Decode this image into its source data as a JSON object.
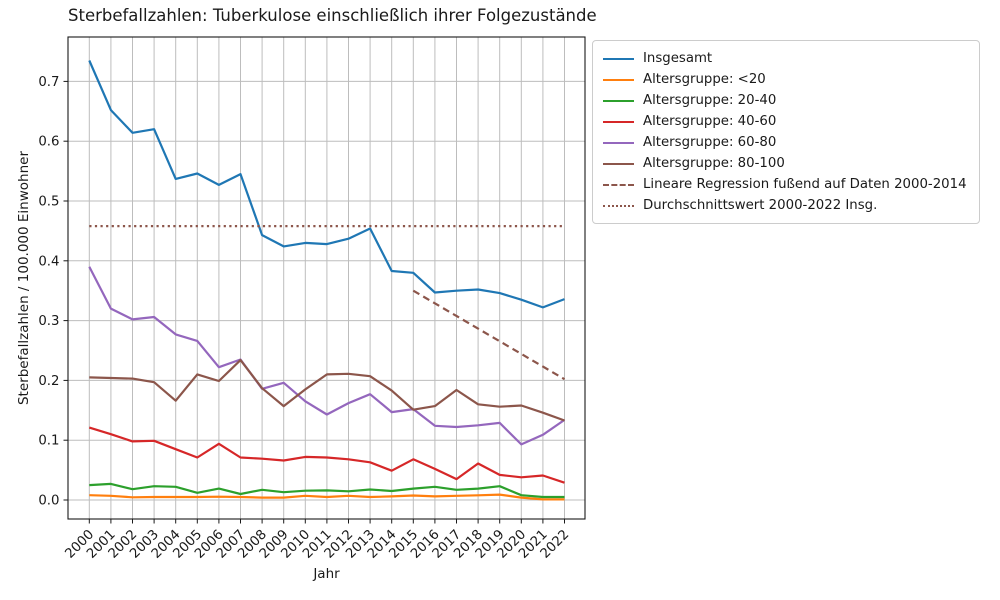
{
  "chart_data": {
    "type": "line",
    "title": "Sterbefallzahlen: Tuberkulose einschließlich ihrer Folgezustände",
    "xlabel": "Jahr",
    "ylabel": "Sterbefallzahlen / 100.000 Einwohner",
    "x": [
      2000,
      2001,
      2002,
      2003,
      2004,
      2005,
      2006,
      2007,
      2008,
      2009,
      2010,
      2011,
      2012,
      2013,
      2014,
      2015,
      2016,
      2017,
      2018,
      2019,
      2020,
      2021,
      2022
    ],
    "yticks": [
      0.0,
      0.1,
      0.2,
      0.3,
      0.4,
      0.5,
      0.6,
      0.7
    ],
    "ylim": [
      -0.033,
      0.775
    ],
    "grid": true,
    "legend_position": "outside-top-right",
    "series": [
      {
        "name": "Insgesamt",
        "color": "#1f77b4",
        "style": "solid",
        "values": [
          0.735,
          0.652,
          0.614,
          0.62,
          0.537,
          0.546,
          0.527,
          0.545,
          0.443,
          0.424,
          0.43,
          0.428,
          0.437,
          0.454,
          0.383,
          0.38,
          0.347,
          0.35,
          0.352,
          0.346,
          0.335,
          0.322,
          0.336
        ]
      },
      {
        "name": "Altersgruppe: <20",
        "color": "#ff7f0e",
        "style": "solid",
        "values": [
          0.008,
          0.007,
          0.0045,
          0.005,
          0.005,
          0.005,
          0.0055,
          0.005,
          0.004,
          0.004,
          0.007,
          0.005,
          0.007,
          0.005,
          0.006,
          0.0075,
          0.006,
          0.007,
          0.0078,
          0.009,
          0.004,
          0.001,
          0.001
        ]
      },
      {
        "name": "Altersgruppe: 20-40",
        "color": "#2ca02c",
        "style": "solid",
        "values": [
          0.025,
          0.027,
          0.018,
          0.023,
          0.022,
          0.012,
          0.019,
          0.01,
          0.017,
          0.013,
          0.0155,
          0.016,
          0.0145,
          0.0175,
          0.015,
          0.019,
          0.022,
          0.017,
          0.019,
          0.023,
          0.008,
          0.005,
          0.005
        ]
      },
      {
        "name": "Altersgruppe: 40-60",
        "color": "#d62728",
        "style": "solid",
        "values": [
          0.121,
          0.11,
          0.098,
          0.099,
          0.085,
          0.071,
          0.094,
          0.071,
          0.069,
          0.066,
          0.072,
          0.071,
          0.068,
          0.063,
          0.049,
          0.068,
          0.052,
          0.035,
          0.061,
          0.042,
          0.038,
          0.041,
          0.029
        ]
      },
      {
        "name": "Altersgruppe: 60-80",
        "color": "#9467bd",
        "style": "solid",
        "values": [
          0.39,
          0.32,
          0.302,
          0.306,
          0.277,
          0.266,
          0.222,
          0.235,
          0.186,
          0.196,
          0.165,
          0.143,
          0.162,
          0.177,
          0.147,
          0.152,
          0.124,
          0.122,
          0.125,
          0.129,
          0.093,
          0.109,
          0.134
        ]
      },
      {
        "name": "Altersgruppe: 80-100",
        "color": "#8c564b",
        "style": "solid",
        "values": [
          0.205,
          0.204,
          0.203,
          0.197,
          0.166,
          0.21,
          0.199,
          0.234,
          0.187,
          0.157,
          0.185,
          0.21,
          0.211,
          0.207,
          0.183,
          0.151,
          0.157,
          0.184,
          0.16,
          0.156,
          0.158,
          0.146,
          0.133
        ]
      },
      {
        "name": "Lineare Regression fußend auf Daten 2000-2014",
        "color": "#8c564b",
        "style": "dashed",
        "x": [
          2015,
          2022
        ],
        "values": [
          0.35,
          0.202
        ]
      },
      {
        "name": "Durchschnittswert 2000-2022 Insg.",
        "color": "#8c564b",
        "style": "dotted",
        "x": [
          2000,
          2022
        ],
        "values": [
          0.458,
          0.458
        ]
      }
    ]
  }
}
